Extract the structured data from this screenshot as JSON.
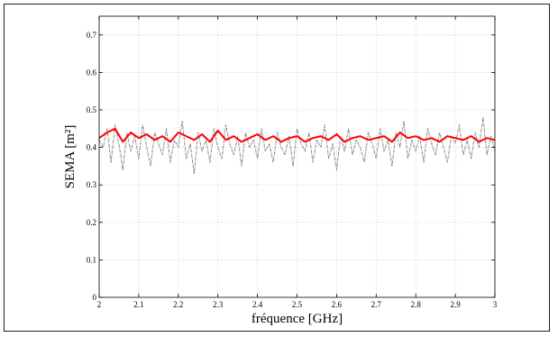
{
  "chart_data": {
    "type": "line",
    "title": "",
    "xlabel": "fréquence [GHz]",
    "ylabel": "SEMA [m²]",
    "xlim": [
      2,
      3
    ],
    "ylim": [
      0,
      0.75
    ],
    "xticks": [
      2,
      2.1,
      2.2,
      2.3,
      2.4,
      2.5,
      2.6,
      2.7,
      2.8,
      2.9,
      3
    ],
    "yticks": [
      0,
      0.1,
      0.2,
      0.3,
      0.4,
      0.5,
      0.6,
      0.7
    ],
    "xtick_labels": [
      "2",
      "2.1",
      "2.2",
      "2.3",
      "2.4",
      "2.5",
      "2.6",
      "2.7",
      "2.8",
      "2.9",
      "3"
    ],
    "ytick_labels": [
      "0",
      "0.1",
      "0.2",
      "0.3",
      "0.4",
      "0.5",
      "0.6",
      "0.7"
    ],
    "grid": true,
    "series": [
      {
        "color": "#808080",
        "style": "dash-dot",
        "x": [
          2.0,
          2.01,
          2.02,
          2.03,
          2.04,
          2.05,
          2.06,
          2.07,
          2.08,
          2.09,
          2.1,
          2.11,
          2.12,
          2.13,
          2.14,
          2.15,
          2.16,
          2.17,
          2.18,
          2.19,
          2.2,
          2.21,
          2.22,
          2.23,
          2.24,
          2.25,
          2.26,
          2.27,
          2.28,
          2.29,
          2.3,
          2.31,
          2.32,
          2.33,
          2.34,
          2.35,
          2.36,
          2.37,
          2.38,
          2.39,
          2.4,
          2.41,
          2.42,
          2.43,
          2.44,
          2.45,
          2.46,
          2.47,
          2.48,
          2.49,
          2.5,
          2.51,
          2.52,
          2.53,
          2.54,
          2.55,
          2.56,
          2.57,
          2.58,
          2.59,
          2.6,
          2.61,
          2.62,
          2.63,
          2.64,
          2.65,
          2.66,
          2.67,
          2.68,
          2.69,
          2.7,
          2.71,
          2.72,
          2.73,
          2.74,
          2.75,
          2.76,
          2.77,
          2.78,
          2.79,
          2.8,
          2.81,
          2.82,
          2.83,
          2.84,
          2.85,
          2.86,
          2.87,
          2.88,
          2.89,
          2.9,
          2.91,
          2.92,
          2.93,
          2.94,
          2.95,
          2.96,
          2.97,
          2.98,
          2.99,
          3.0
        ],
        "values": [
          0.42,
          0.4,
          0.45,
          0.36,
          0.46,
          0.41,
          0.34,
          0.44,
          0.39,
          0.43,
          0.37,
          0.46,
          0.4,
          0.35,
          0.44,
          0.41,
          0.38,
          0.45,
          0.36,
          0.42,
          0.4,
          0.47,
          0.37,
          0.41,
          0.33,
          0.44,
          0.39,
          0.42,
          0.36,
          0.45,
          0.4,
          0.37,
          0.46,
          0.41,
          0.38,
          0.43,
          0.35,
          0.44,
          0.4,
          0.42,
          0.37,
          0.45,
          0.39,
          0.41,
          0.36,
          0.44,
          0.4,
          0.38,
          0.43,
          0.35,
          0.45,
          0.41,
          0.39,
          0.44,
          0.36,
          0.42,
          0.4,
          0.46,
          0.37,
          0.41,
          0.34,
          0.43,
          0.39,
          0.45,
          0.38,
          0.42,
          0.4,
          0.36,
          0.44,
          0.41,
          0.37,
          0.45,
          0.39,
          0.42,
          0.35,
          0.44,
          0.4,
          0.47,
          0.37,
          0.42,
          0.39,
          0.43,
          0.36,
          0.45,
          0.41,
          0.38,
          0.44,
          0.4,
          0.36,
          0.43,
          0.41,
          0.46,
          0.38,
          0.42,
          0.37,
          0.44,
          0.4,
          0.48,
          0.38,
          0.43,
          0.39
        ]
      },
      {
        "color": "#ff0000",
        "style": "solid",
        "x": [
          2.0,
          2.02,
          2.04,
          2.06,
          2.08,
          2.1,
          2.12,
          2.14,
          2.16,
          2.18,
          2.2,
          2.22,
          2.24,
          2.26,
          2.28,
          2.3,
          2.32,
          2.34,
          2.36,
          2.38,
          2.4,
          2.42,
          2.44,
          2.46,
          2.48,
          2.5,
          2.52,
          2.54,
          2.56,
          2.58,
          2.6,
          2.62,
          2.64,
          2.66,
          2.68,
          2.7,
          2.72,
          2.74,
          2.76,
          2.78,
          2.8,
          2.82,
          2.84,
          2.86,
          2.88,
          2.9,
          2.92,
          2.94,
          2.96,
          2.98,
          3.0
        ],
        "values": [
          0.425,
          0.44,
          0.45,
          0.415,
          0.44,
          0.425,
          0.435,
          0.42,
          0.43,
          0.415,
          0.44,
          0.43,
          0.42,
          0.435,
          0.415,
          0.445,
          0.42,
          0.43,
          0.415,
          0.425,
          0.435,
          0.42,
          0.43,
          0.415,
          0.425,
          0.43,
          0.415,
          0.425,
          0.43,
          0.42,
          0.435,
          0.415,
          0.425,
          0.43,
          0.42,
          0.425,
          0.43,
          0.415,
          0.44,
          0.425,
          0.43,
          0.42,
          0.425,
          0.415,
          0.43,
          0.425,
          0.42,
          0.43,
          0.415,
          0.425,
          0.42
        ]
      }
    ]
  }
}
